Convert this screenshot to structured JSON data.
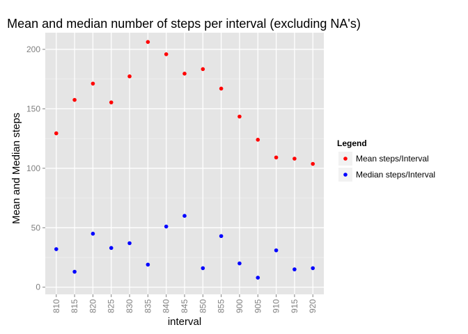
{
  "chart_data": {
    "type": "scatter",
    "title": "Mean and median number of steps per interval (excluding NA's)",
    "xlabel": "interval",
    "ylabel": "Mean and Median steps",
    "categories": [
      "810",
      "815",
      "820",
      "825",
      "830",
      "835",
      "840",
      "845",
      "850",
      "855",
      "900",
      "905",
      "910",
      "915",
      "920"
    ],
    "ylim": [
      -6,
      214
    ],
    "yticks": [
      0,
      50,
      100,
      150,
      200
    ],
    "grid": true,
    "legend": {
      "title": "Legend",
      "position": "right"
    },
    "series": [
      {
        "name": "Mean steps/Interval",
        "color": "#ff0000",
        "values": [
          129.4,
          157.5,
          171.2,
          155.4,
          177.3,
          206.2,
          195.9,
          179.6,
          183.4,
          167.0,
          143.5,
          124.0,
          109.1,
          108.1,
          103.7
        ]
      },
      {
        "name": "Median steps/Interval",
        "color": "#0000ff",
        "values": [
          32,
          13,
          45,
          33,
          37,
          19,
          51,
          60,
          16,
          43,
          20,
          8,
          31,
          15,
          16
        ]
      }
    ],
    "panel_background": "#e5e5e5",
    "grid_color": "#ffffff"
  }
}
